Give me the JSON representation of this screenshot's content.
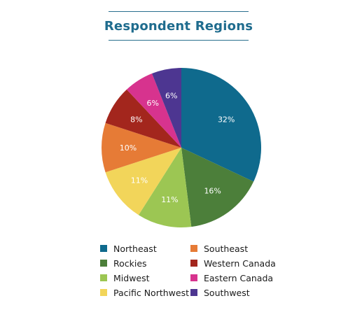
{
  "chart_data": {
    "type": "pie",
    "title": "Respondent Regions",
    "categories": [
      "Northeast",
      "Rockies",
      "Midwest",
      "Pacific Northwest",
      "Southeast",
      "Western Canada",
      "Eastern Canada",
      "Southwest"
    ],
    "values": [
      32,
      16,
      11,
      11,
      10,
      8,
      6,
      6
    ],
    "labels": [
      "32%",
      "16%",
      "11%",
      "11%",
      "10%",
      "8%",
      "6%",
      "6%"
    ],
    "colors": [
      "#0f6a8d",
      "#4c7f3a",
      "#9cc653",
      "#f2d55a",
      "#e67b36",
      "#a3261d",
      "#d7338e",
      "#4d3691"
    ],
    "legend_position": "bottom",
    "grid": false
  }
}
